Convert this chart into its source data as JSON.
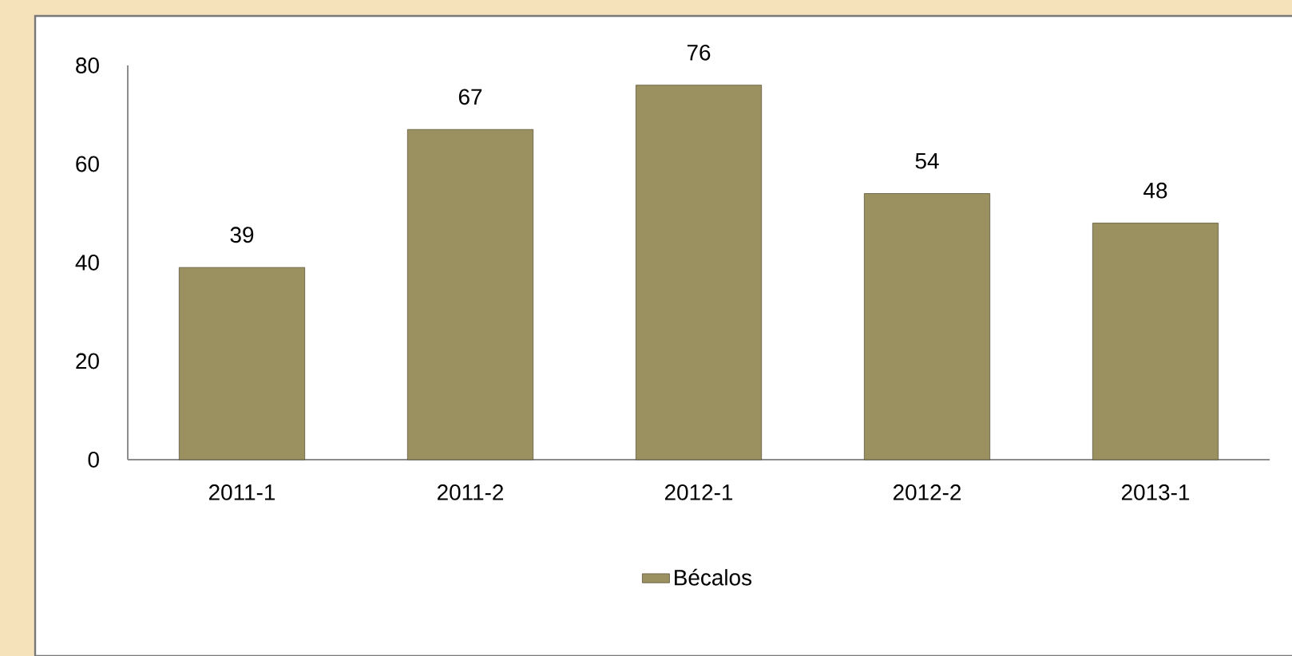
{
  "chart_data": {
    "type": "bar",
    "categories": [
      "2011-1",
      "2011-2",
      "2012-1",
      "2012-2",
      "2013-1"
    ],
    "series": [
      {
        "name": "Bécalos",
        "color": "#9b9060",
        "values": [
          39,
          67,
          76,
          54,
          48
        ]
      }
    ],
    "ylim": [
      0,
      80
    ],
    "yticks": [
      0,
      20,
      40,
      60,
      80
    ],
    "data_labels": true,
    "legend": "bottom"
  }
}
